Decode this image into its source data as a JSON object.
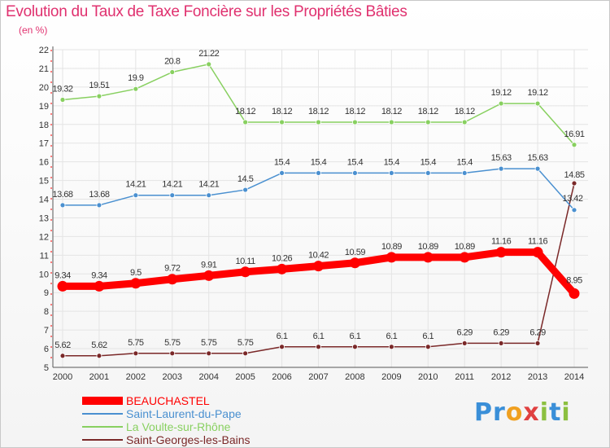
{
  "chart_data": {
    "type": "line",
    "title": "Evolution du Taux de Taxe Foncière sur les Propriétés Bâties",
    "unit_label": "(en %)",
    "x": [
      "2000",
      "2001",
      "2002",
      "2003",
      "2004",
      "2005",
      "2006",
      "2007",
      "2008",
      "2009",
      "2010",
      "2011",
      "2012",
      "2013",
      "2014"
    ],
    "ylim": [
      5,
      22
    ],
    "yticks": [
      5,
      6,
      7,
      8,
      9,
      10,
      11,
      12,
      13,
      14,
      15,
      16,
      17,
      18,
      19,
      20,
      21,
      22
    ],
    "grid": true,
    "series": [
      {
        "name": "BEAUCHASTEL",
        "color": "#ff0000",
        "values": [
          9.34,
          9.34,
          9.5,
          9.72,
          9.91,
          10.11,
          10.26,
          10.42,
          10.59,
          10.89,
          10.89,
          10.89,
          11.16,
          11.16,
          8.95
        ],
        "labels": [
          "9.34",
          "9.34",
          "9.5",
          "9.72",
          "9.91",
          "10.11",
          "10.26",
          "10.42",
          "10.59",
          "10.89",
          "10.89",
          "10.89",
          "11.16",
          "11.16",
          "8.95"
        ]
      },
      {
        "name": "Saint-Laurent-du-Pape",
        "color": "#4a90d0",
        "values": [
          13.68,
          13.68,
          14.21,
          14.21,
          14.21,
          14.5,
          15.4,
          15.4,
          15.4,
          15.4,
          15.4,
          15.4,
          15.63,
          15.63,
          13.42
        ],
        "labels": [
          "13.68",
          "13.68",
          "14.21",
          "14.21",
          "14.21",
          "14.5",
          "15.4",
          "15.4",
          "15.4",
          "15.4",
          "15.4",
          "15.4",
          "15.63",
          "15.63",
          "13.42"
        ]
      },
      {
        "name": "La Voulte-sur-Rhône",
        "color": "#88d060",
        "values": [
          19.32,
          19.51,
          19.9,
          20.8,
          21.22,
          18.12,
          18.12,
          18.12,
          18.12,
          18.12,
          18.12,
          18.12,
          19.12,
          19.12,
          16.91
        ],
        "labels": [
          "19.32",
          "19.51",
          "19.9",
          "20.8",
          "21.22",
          "18.12",
          "18.12",
          "18.12",
          "18.12",
          "18.12",
          "18.12",
          "18.12",
          "19.12",
          "19.12",
          "16.91"
        ]
      },
      {
        "name": "Saint-Georges-les-Bains",
        "color": "#7a2828",
        "values": [
          5.62,
          5.62,
          5.75,
          5.75,
          5.75,
          5.75,
          6.1,
          6.1,
          6.1,
          6.1,
          6.1,
          6.29,
          6.29,
          6.29,
          14.85
        ],
        "labels": [
          "5.62",
          "5.62",
          "5.75",
          "5.75",
          "5.75",
          "5.75",
          "6.1",
          "6.1",
          "6.1",
          "6.1",
          "6.1",
          "6.29",
          "6.29",
          "6.29",
          "14.85"
        ]
      }
    ]
  },
  "logo": {
    "text": "Proxiti",
    "letters": [
      "P",
      "r",
      "o",
      "x",
      "i",
      "t",
      "i"
    ],
    "colors": [
      "#3a8fd8",
      "#3a8fd8",
      "#f0a020",
      "#e04040",
      "#8cc040",
      "#3a8fd8",
      "#8cc040"
    ]
  }
}
